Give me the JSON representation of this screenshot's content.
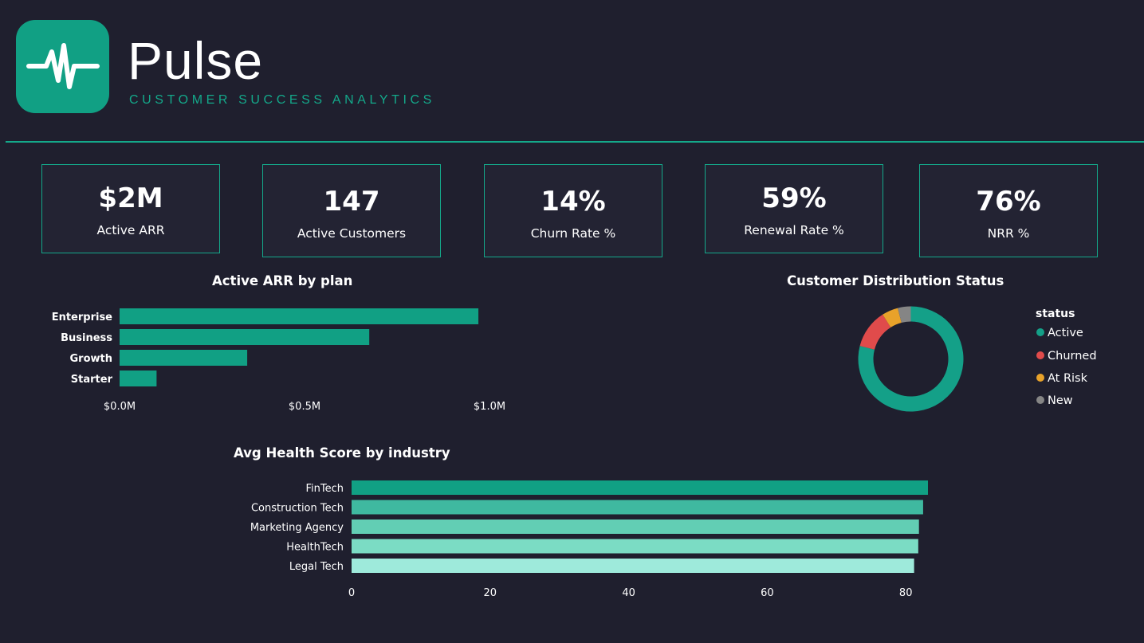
{
  "app": {
    "title": "Pulse",
    "subtitle": "CUSTOMER SUCCESS ANALYTICS",
    "logo_icon": "heartbeat-pulse-icon"
  },
  "colors": {
    "background": "#1f1f2e",
    "accent": "#14a88a",
    "card_bg": "#232333"
  },
  "kpis": [
    {
      "value": "$2M",
      "label": "Active ARR"
    },
    {
      "value": "147",
      "label": "Active Customers"
    },
    {
      "value": "14%",
      "label": "Churn Rate %"
    },
    {
      "value": "59%",
      "label": "Renewal Rate %"
    },
    {
      "value": "76%",
      "label": "NRR %"
    }
  ],
  "chart_data": [
    {
      "type": "bar",
      "orientation": "horizontal",
      "title": "Active ARR by plan",
      "categories": [
        "Enterprise",
        "Business",
        "Growth",
        "Starter"
      ],
      "values": [
        0.97,
        0.675,
        0.345,
        0.1
      ],
      "unit": "$M",
      "xlim": [
        0,
        1.0
      ],
      "xticks": [
        "$0.0M",
        "$0.5M",
        "$1.0M"
      ],
      "color": "#11a084"
    },
    {
      "type": "pie",
      "donut": true,
      "title": "Customer Distribution Status",
      "legend_title": "status",
      "legend_position": "right",
      "slices": [
        {
          "label": "Active",
          "value": 79,
          "color": "#14a088"
        },
        {
          "label": "Churned",
          "value": 12,
          "color": "#e04b4b"
        },
        {
          "label": "At Risk",
          "value": 5,
          "color": "#e8a22a"
        },
        {
          "label": "New",
          "value": 4,
          "color": "#858585"
        }
      ]
    },
    {
      "type": "bar",
      "orientation": "horizontal",
      "title": "Avg Health Score by industry",
      "categories": [
        "FinTech",
        "Construction Tech",
        "Marketing Agency",
        "HealthTech",
        "Legal Tech"
      ],
      "values": [
        83.2,
        82.5,
        81.9,
        81.8,
        81.2
      ],
      "xlim": [
        0,
        85
      ],
      "xticks": [
        "0",
        "20",
        "40",
        "60",
        "80"
      ],
      "tick_values": [
        0,
        20,
        40,
        60,
        80
      ],
      "colors": [
        "#11a084",
        "#3fb9a0",
        "#62ceb4",
        "#7bdcc4",
        "#9eeadb"
      ]
    }
  ]
}
